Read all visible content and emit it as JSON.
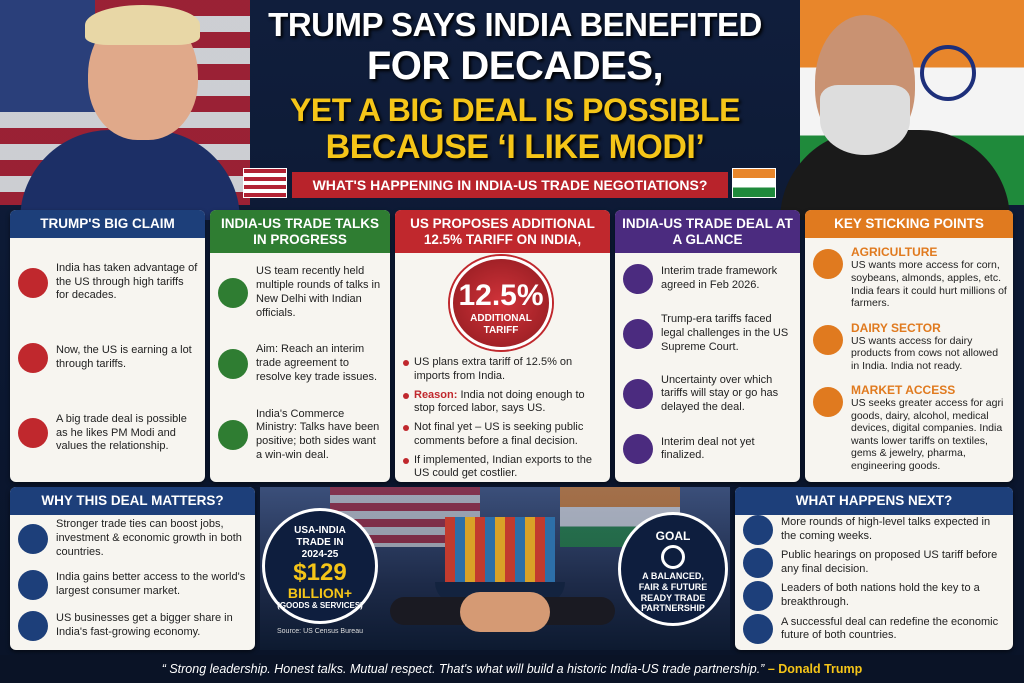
{
  "header": {
    "title_lines": [
      "TRUMP SAYS INDIA BENEFITED",
      "FOR DECADES,",
      "YET A BIG DEAL IS POSSIBLE",
      "BECAUSE ‘I LIKE MODI’"
    ],
    "subtitle": "WHAT'S HAPPENING IN INDIA-US TRADE NEGOTIATIONS?"
  },
  "claim": {
    "title": "TRUMP'S BIG CLAIM",
    "items": [
      "India has taken advantage of the US through high tariffs for decades.",
      "Now, the US is earning a lot through tariffs.",
      "A big trade deal is possible as he likes PM Modi and values the relationship."
    ]
  },
  "talks": {
    "title": "INDIA-US TRADE TALKS IN PROGRESS",
    "items": [
      "US team recently held multiple rounds of talks in New Delhi with Indian officials.",
      "Aim: Reach an interim trade agreement to resolve key trade issues.",
      "India's Commerce Ministry: Talks have been positive; both sides want a win-win deal."
    ]
  },
  "tariff": {
    "title": "US PROPOSES ADDITIONAL 12.5% TARIFF ON INDIA,",
    "badge_value": "12.5%",
    "badge_label": "ADDITIONAL TARIFF",
    "bullets": [
      {
        "text": "US plans extra tariff of 12.5% on imports from India."
      },
      {
        "lead": "Reason:",
        "text": "India not doing enough to stop forced labor, says US."
      },
      {
        "text": "Not final yet – US is seeking public comments before a final decision."
      },
      {
        "text": "If implemented, Indian exports to the US could get costlier."
      }
    ]
  },
  "glance": {
    "title": "INDIA-US TRADE DEAL AT A GLANCE",
    "items": [
      "Interim trade framework agreed in Feb 2026.",
      "Trump-era tariffs faced legal challenges in the US Supreme Court.",
      "Uncertainty over which tariffs will stay or go has delayed the deal.",
      "Interim deal not yet finalized."
    ]
  },
  "sticking": {
    "title": "KEY STICKING POINTS",
    "items": [
      {
        "heading": "AGRICULTURE",
        "text": "US wants more access for corn, soybeans, almonds, apples, etc. India fears it could hurt millions of farmers."
      },
      {
        "heading": "DAIRY SECTOR",
        "text": "US wants access for dairy products from cows not allowed in India. India not ready."
      },
      {
        "heading": "MARKET ACCESS",
        "text": "US seeks greater access for agri goods, dairy, alcohol, medical devices, digital companies. India wants lower tariffs on textiles, gems & jewelry, pharma, engineering goods."
      }
    ]
  },
  "matters": {
    "title": "WHY THIS DEAL MATTERS?",
    "items": [
      "Stronger trade ties can boost jobs, investment & economic growth in both countries.",
      "India gains better access to the world's largest consumer market.",
      "US businesses get a bigger share in India's fast-growing economy."
    ]
  },
  "trade": {
    "heading": "USA-INDIA TRADE IN 2024-25",
    "amount": "$129",
    "unit": "BILLION+",
    "note": "(GOODS & SERVICES)",
    "source": "Source: US Census Bureau"
  },
  "goal": {
    "heading": "GOAL",
    "text": "A BALANCED, FAIR & FUTURE READY TRADE PARTNERSHIP"
  },
  "next": {
    "title": "WHAT HAPPENS NEXT?",
    "items": [
      "More rounds of high-level talks expected in the coming weeks.",
      "Public hearings on proposed US tariff before any final decision.",
      "Leaders of both nations hold the key to a breakthrough.",
      "A successful deal can redefine the economic future of both countries."
    ]
  },
  "quote": {
    "text": "“ Strong leadership. Honest talks. Mutual respect. That's what will build a historic India-US trade partnership.”",
    "author": "– Donald Trump"
  }
}
